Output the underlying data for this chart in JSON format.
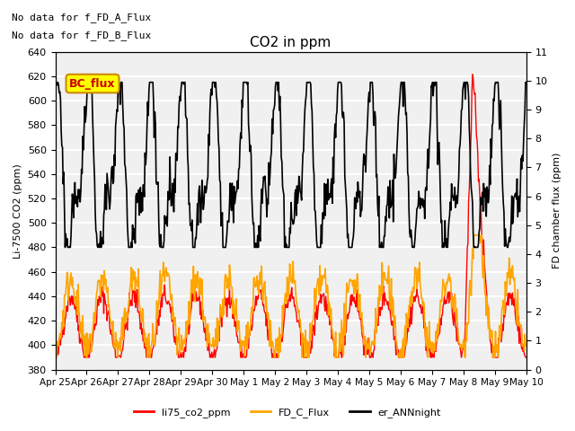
{
  "title": "CO2 in ppm",
  "ylabel_left": "Li-7500 CO2 (ppm)",
  "ylabel_right": "FD chamber flux (ppm)",
  "text_annotations": [
    "No data for f_FD_A_Flux",
    "No data for f_FD_B_Flux"
  ],
  "legend_labels": [
    "li75_co2_ppm",
    "FD_C_Flux",
    "er_ANNnight"
  ],
  "legend_colors": [
    "#ff0000",
    "#ffa500",
    "#000000"
  ],
  "ylim_left": [
    380,
    640
  ],
  "ylim_right": [
    0.0,
    11.0
  ],
  "yticks_left": [
    380,
    400,
    420,
    440,
    460,
    480,
    500,
    520,
    540,
    560,
    580,
    600,
    620,
    640
  ],
  "yticks_right": [
    0.0,
    1.0,
    2.0,
    3.0,
    4.0,
    5.0,
    6.0,
    7.0,
    8.0,
    9.0,
    10.0,
    11.0
  ],
  "xtick_labels": [
    "Apr 25",
    "Apr 26",
    "Apr 27",
    "Apr 28",
    "Apr 29",
    "Apr 30",
    "May 1",
    "May 2",
    "May 3",
    "May 4",
    "May 5",
    "May 6",
    "May 7",
    "May 8",
    "May 9",
    "May 10"
  ],
  "bc_flux_box_color": "#ffff00",
  "bc_flux_box_text": "BC_flux",
  "background_color": "#f0f0f0",
  "grid_color": "#ffffff",
  "line_lw_red": 1.0,
  "line_lw_orange": 1.2,
  "line_lw_black": 1.2
}
